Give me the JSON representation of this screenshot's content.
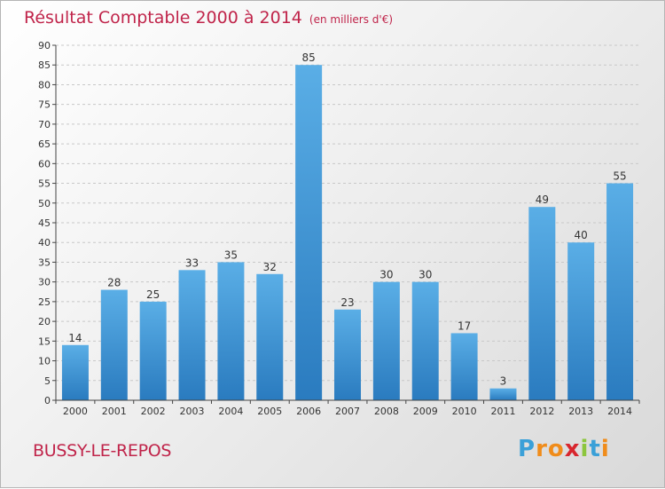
{
  "chart_data": {
    "type": "bar",
    "title": "Résultat Comptable 2000 à 2014",
    "subtitle": "(en milliers d'€)",
    "categories": [
      "2000",
      "2001",
      "2002",
      "2003",
      "2004",
      "2005",
      "2006",
      "2007",
      "2008",
      "2009",
      "2010",
      "2011",
      "2012",
      "2013",
      "2014"
    ],
    "values": [
      14,
      28,
      25,
      33,
      35,
      32,
      85,
      23,
      30,
      30,
      17,
      3,
      49,
      40,
      55
    ],
    "ylim": [
      0,
      90
    ],
    "yticks": [
      0,
      5,
      10,
      15,
      20,
      25,
      30,
      35,
      40,
      45,
      50,
      55,
      60,
      65,
      70,
      75,
      80,
      85,
      90
    ],
    "xlabel": "",
    "ylabel": "",
    "grid": true
  },
  "place_name": "BUSSY-LE-REPOS",
  "logo": {
    "text": "Proxiti",
    "letters": [
      "P",
      "r",
      "o",
      "x",
      "i",
      "t",
      "i"
    ],
    "colors": [
      "#3aa0d8",
      "#f08c1a",
      "#f08c1a",
      "#d8262e",
      "#8cc63e",
      "#3aa0d8",
      "#f08c1a"
    ]
  },
  "colors": {
    "title": "#c0244a",
    "bar_top": "#5aaee6",
    "bar_bottom": "#2a7bbf",
    "grid": "#c8c8c8",
    "axis": "#444444"
  }
}
